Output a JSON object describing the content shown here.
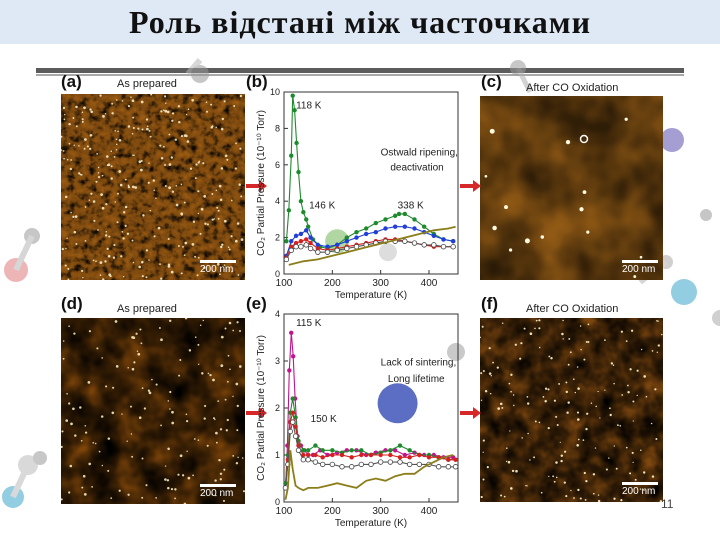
{
  "slide": {
    "title": "Роль відстані між часточками",
    "page_number": "11"
  },
  "panels": {
    "a": {
      "letter": "(a)",
      "caption": "As prepared",
      "scale": "200 nm"
    },
    "b": {
      "letter": "(b)"
    },
    "c": {
      "letter": "(c)",
      "caption": "After CO Oxidation",
      "scale": "200 nm"
    },
    "d": {
      "letter": "(d)",
      "caption": "As prepared",
      "scale": "200 nm"
    },
    "e": {
      "letter": "(e)"
    },
    "f": {
      "letter": "(f)",
      "caption": "After CO Oxidation",
      "scale": "200 nm"
    }
  },
  "colors": {
    "afm_light": "#f2c060",
    "afm_dark": "#7a4208",
    "arrow_red": "#d62828",
    "series_green": "#1e8a2e",
    "series_blue": "#1f3fd6",
    "series_red": "#d42020",
    "series_white": "#ffffff",
    "series_olive": "#8b7d18",
    "series_magenta": "#c0148c"
  },
  "chart_data": [
    {
      "id": "b",
      "type": "line",
      "xlabel": "Temperature (K)",
      "ylabel": "CO₂ Partial Pressure (10⁻¹⁰ Torr)",
      "xlim": [
        100,
        460
      ],
      "ylim": [
        0,
        10
      ],
      "xticks": [
        100,
        200,
        300,
        400
      ],
      "yticks": [
        0,
        2,
        4,
        6,
        8,
        10
      ],
      "annotations": [
        {
          "text": "118 K",
          "x": 125,
          "y": 9.1
        },
        {
          "text": "146 K",
          "x": 152,
          "y": 3.6
        },
        {
          "text": "338 K",
          "x": 335,
          "y": 3.6
        },
        {
          "text": "Ostwald ripening,",
          "x": 300,
          "y": 6.5
        },
        {
          "text": "deactivation",
          "x": 320,
          "y": 5.7
        }
      ],
      "series": [
        {
          "color": "green",
          "marker": "filled",
          "x": [
            105,
            110,
            115,
            118,
            122,
            126,
            130,
            135,
            140,
            146,
            150,
            160,
            175,
            190,
            210,
            230,
            250,
            270,
            290,
            310,
            330,
            338,
            350,
            370,
            390,
            410,
            430,
            450
          ],
          "y": [
            1.8,
            3.5,
            6.5,
            9.8,
            9.0,
            7.2,
            5.6,
            4.0,
            3.4,
            3.0,
            2.6,
            1.9,
            1.5,
            1.4,
            1.6,
            2.0,
            2.3,
            2.5,
            2.8,
            3.0,
            3.2,
            3.3,
            3.3,
            3.0,
            2.6,
            2.2,
            1.9,
            1.8
          ]
        },
        {
          "color": "blue",
          "marker": "filled",
          "x": [
            105,
            115,
            125,
            135,
            146,
            155,
            170,
            190,
            210,
            230,
            250,
            270,
            290,
            310,
            330,
            350,
            370,
            390,
            410,
            430,
            450
          ],
          "y": [
            1.0,
            1.8,
            2.1,
            2.2,
            2.4,
            2.0,
            1.6,
            1.5,
            1.6,
            1.8,
            2.0,
            2.2,
            2.3,
            2.5,
            2.6,
            2.6,
            2.5,
            2.3,
            2.1,
            1.9,
            1.8
          ]
        },
        {
          "color": "red",
          "marker": "filled",
          "x": [
            105,
            115,
            125,
            135,
            146,
            155,
            170,
            190,
            210,
            230,
            250,
            270,
            290,
            310,
            330,
            350,
            370,
            390,
            410,
            430,
            450
          ],
          "y": [
            0.9,
            1.5,
            1.7,
            1.8,
            1.9,
            1.7,
            1.4,
            1.3,
            1.4,
            1.5,
            1.6,
            1.7,
            1.8,
            1.9,
            1.9,
            1.8,
            1.7,
            1.6,
            1.5,
            1.5,
            1.5
          ]
        },
        {
          "color": "white",
          "marker": "open",
          "x": [
            105,
            115,
            125,
            135,
            146,
            155,
            170,
            190,
            210,
            230,
            250,
            270,
            290,
            310,
            330,
            350,
            370,
            390,
            410,
            430,
            450
          ],
          "y": [
            0.8,
            1.3,
            1.5,
            1.5,
            1.6,
            1.4,
            1.2,
            1.2,
            1.3,
            1.4,
            1.5,
            1.6,
            1.7,
            1.8,
            1.8,
            1.8,
            1.7,
            1.6,
            1.6,
            1.5,
            1.5
          ]
        },
        {
          "color": "olive",
          "marker": "none",
          "x": [
            110,
            140,
            170,
            200,
            230,
            260,
            290,
            320,
            350,
            380,
            410,
            440,
            455
          ],
          "y": [
            0.5,
            0.7,
            0.8,
            1.0,
            1.2,
            1.4,
            1.6,
            1.8,
            2.0,
            2.2,
            2.4,
            2.5,
            2.6
          ]
        }
      ]
    },
    {
      "id": "e",
      "type": "line",
      "xlabel": "Temperature (K)",
      "ylabel": "CO₂ Partial Pressure (10⁻¹⁰ Torr)",
      "xlim": [
        100,
        460
      ],
      "ylim": [
        0,
        4
      ],
      "xticks": [
        100,
        200,
        300,
        400
      ],
      "yticks": [
        0,
        1,
        2,
        3,
        4
      ],
      "annotations": [
        {
          "text": "115 K",
          "x": 125,
          "y": 3.75
        },
        {
          "text": "150 K",
          "x": 155,
          "y": 1.7
        },
        {
          "text": "Lack of sintering,",
          "x": 300,
          "y": 2.9
        },
        {
          "text": "Long lifetime",
          "x": 315,
          "y": 2.55
        }
      ],
      "series": [
        {
          "color": "magenta",
          "marker": "filled",
          "x": [
            103,
            107,
            111,
            115,
            119,
            123,
            128,
            135,
            142,
            150,
            160,
            175,
            190,
            210,
            230,
            250,
            270,
            290,
            310,
            330,
            350,
            370,
            390,
            410,
            430,
            450
          ],
          "y": [
            0.3,
            1.2,
            2.8,
            3.6,
            3.1,
            2.2,
            1.4,
            1.2,
            1.1,
            1.0,
            1.0,
            1.1,
            1.0,
            1.05,
            1.1,
            1.1,
            1.0,
            1.05,
            1.1,
            1.1,
            1.0,
            1.05,
            1.0,
            1.0,
            0.95,
            0.95
          ]
        },
        {
          "color": "green",
          "marker": "filled",
          "x": [
            103,
            108,
            113,
            118,
            124,
            130,
            140,
            150,
            165,
            180,
            200,
            220,
            240,
            260,
            280,
            300,
            320,
            340,
            360,
            380,
            400,
            420,
            440,
            455
          ],
          "y": [
            0.4,
            1.0,
            1.9,
            2.2,
            1.8,
            1.3,
            1.1,
            1.1,
            1.2,
            1.1,
            1.1,
            1.05,
            1.1,
            1.1,
            1.0,
            1.05,
            1.1,
            1.2,
            1.1,
            1.0,
            1.0,
            0.95,
            0.9,
            0.9
          ]
        },
        {
          "color": "red",
          "marker": "filled",
          "x": [
            103,
            108,
            113,
            118,
            124,
            130,
            140,
            150,
            165,
            180,
            200,
            220,
            240,
            260,
            280,
            300,
            320,
            340,
            360,
            380,
            400,
            420,
            440,
            455
          ],
          "y": [
            0.3,
            0.9,
            1.7,
            1.9,
            1.6,
            1.2,
            1.0,
            1.0,
            1.0,
            0.95,
            1.0,
            1.0,
            0.95,
            1.0,
            1.0,
            1.0,
            1.0,
            0.95,
            0.95,
            1.0,
            0.95,
            0.95,
            0.9,
            0.9
          ]
        },
        {
          "color": "white",
          "marker": "open",
          "x": [
            103,
            108,
            113,
            118,
            124,
            130,
            140,
            150,
            165,
            180,
            200,
            220,
            240,
            260,
            280,
            300,
            320,
            340,
            360,
            380,
            400,
            420,
            440,
            455
          ],
          "y": [
            0.3,
            0.8,
            1.5,
            1.7,
            1.4,
            1.1,
            0.9,
            0.9,
            0.85,
            0.8,
            0.8,
            0.75,
            0.75,
            0.8,
            0.8,
            0.85,
            0.85,
            0.85,
            0.8,
            0.8,
            0.8,
            0.75,
            0.75,
            0.75
          ]
        },
        {
          "color": "olive",
          "marker": "none",
          "x": [
            103,
            108,
            113,
            118,
            124,
            130,
            140,
            150,
            170,
            190,
            210,
            230,
            250,
            270,
            290,
            310,
            330,
            350,
            370,
            390,
            410,
            430,
            450
          ],
          "y": [
            0.05,
            0.3,
            1.1,
            0.7,
            0.35,
            0.3,
            0.25,
            0.3,
            0.3,
            0.35,
            0.4,
            0.35,
            0.3,
            0.45,
            0.5,
            0.45,
            0.55,
            0.6,
            0.6,
            0.75,
            0.85,
            0.95,
            1.0
          ]
        }
      ]
    }
  ]
}
